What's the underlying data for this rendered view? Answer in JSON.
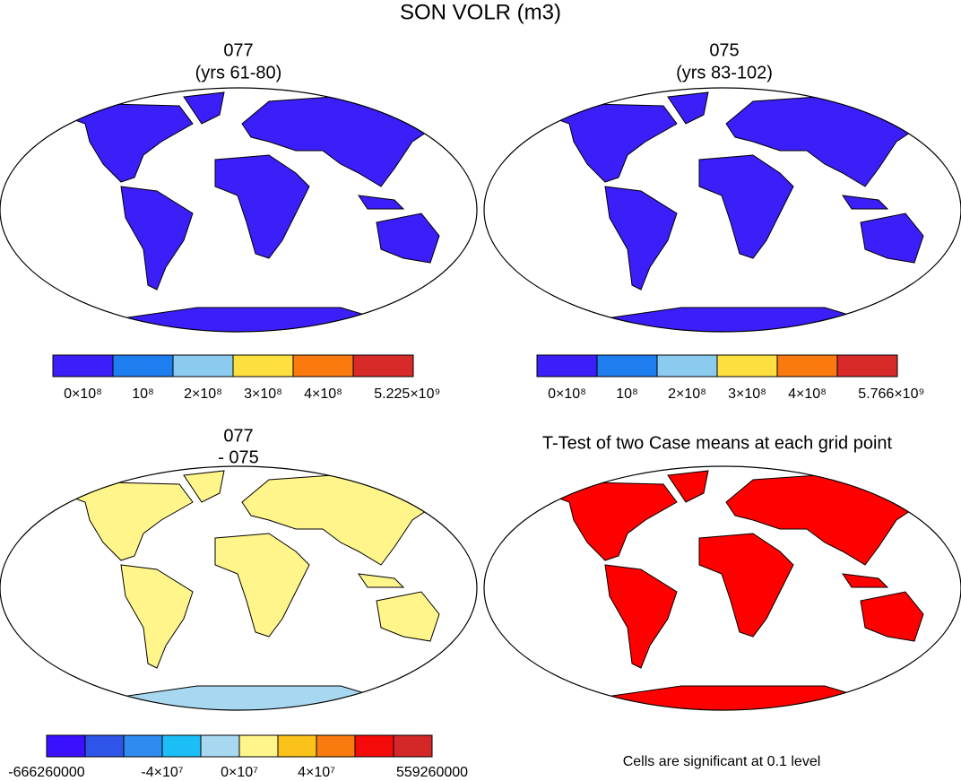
{
  "title": "SON VOLR (m3)",
  "panels": [
    {
      "title": "077",
      "subtitle": "(yrs 61-80)",
      "colorbar": {
        "colors": [
          "#3b1ef8",
          "#1e7ef0",
          "#8ccbf0",
          "#fde040",
          "#fb7a10",
          "#d92a2a"
        ],
        "labels": [
          "0×10⁸",
          "10⁸",
          "2×10⁸",
          "3×10⁸",
          "4×10⁸",
          "5.225×10⁹"
        ]
      }
    },
    {
      "title": "075",
      "subtitle": "(yrs 83-102)",
      "colorbar": {
        "colors": [
          "#3b1ef8",
          "#1e7ef0",
          "#8ccbf0",
          "#fde040",
          "#fb7a10",
          "#d92a2a"
        ],
        "labels": [
          "0×10⁸",
          "10⁸",
          "2×10⁸",
          "3×10⁸",
          "4×10⁸",
          "5.766×10⁹"
        ]
      }
    },
    {
      "title": "077",
      "subtitle": "- 075",
      "colorbar": {
        "colors": [
          "#3a10ff",
          "#2f55e8",
          "#2f8bf0",
          "#1bbff5",
          "#a8d8f0",
          "#fff58a",
          "#fcc21c",
          "#f97a0e",
          "#f50a0a",
          "#d42828"
        ],
        "labels": [
          "-666260000",
          "-4×10⁷",
          "0×10⁷",
          "4×10⁷",
          "559260000"
        ]
      }
    },
    {
      "title": "T-Test of two Case means at each grid point",
      "note": "Cells are significant at 0.1 level"
    }
  ]
}
